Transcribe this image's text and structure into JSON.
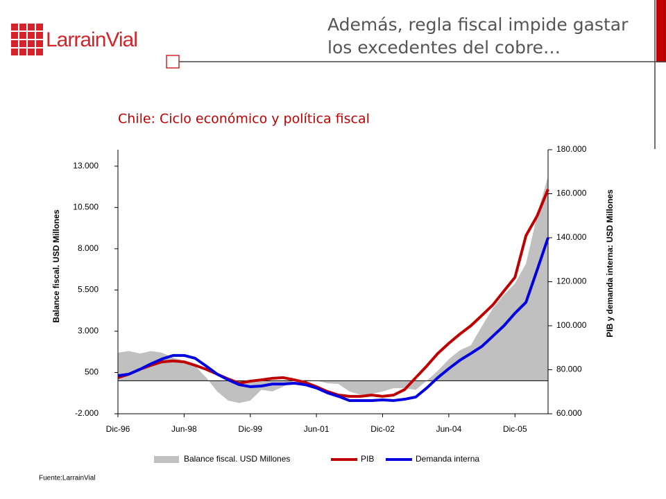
{
  "header": {
    "logo": "LarrainVial",
    "title_lines": [
      "Además, regla fiscal impide gastar",
      "los excedentes del cobre…"
    ]
  },
  "source": "Fuente:LarrainVial",
  "chart_data": {
    "type": "combo",
    "title": "Chile: Ciclo económico y política fiscal",
    "ylabel": "Balance fiscal. USD Millones",
    "y2label": "PIB y demanda interna: USD Millones",
    "categories": [
      "Dic-96",
      null,
      null,
      null,
      null,
      null,
      "Jun-98",
      null,
      null,
      null,
      null,
      null,
      "Dic-99",
      null,
      null,
      null,
      null,
      null,
      "Jun-01",
      null,
      null,
      null,
      null,
      null,
      "Dic-02",
      null,
      null,
      null,
      null,
      null,
      "Jun-04",
      null,
      null,
      null,
      null,
      null,
      "Dic-05",
      null,
      null,
      null
    ],
    "ylim": [
      -2000,
      14000
    ],
    "yticks": [
      {
        "value": -2000,
        "label": "-2.000"
      },
      500,
      {
        "value": 3000,
        "label": "3.000"
      },
      {
        "value": 5500,
        "label": "5.500"
      },
      {
        "value": 8000,
        "label": "8.000"
      },
      {
        "value": 10500,
        "label": "10.500"
      },
      {
        "value": 13000,
        "label": "13.000"
      }
    ],
    "y2lim": [
      60000,
      180000
    ],
    "y2ticks": [
      {
        "value": 60000,
        "label": "60.000"
      },
      {
        "value": 80000,
        "label": "80.000"
      },
      {
        "value": 100000,
        "label": "100.000"
      },
      {
        "value": 120000,
        "label": "120.000"
      },
      {
        "value": 140000,
        "label": "140.000"
      },
      {
        "value": 160000,
        "label": "160.000"
      },
      {
        "value": 180000,
        "label": "180.000"
      }
    ],
    "series": [
      {
        "name": "Balance fiscal. USD Millones",
        "kind": "area",
        "color": "#c0c0c0",
        "values": [
          1700,
          1800,
          1650,
          1800,
          1700,
          1400,
          1200,
          900,
          200,
          -650,
          -1200,
          -1350,
          -1200,
          -550,
          -650,
          -350,
          0,
          50,
          0,
          -150,
          -200,
          -650,
          -850,
          -800,
          -650,
          -450,
          -450,
          -550,
          0,
          600,
          1300,
          1850,
          2150,
          3300,
          4400,
          5200,
          5900,
          7100,
          10000,
          12400
        ]
      },
      {
        "name": "PIB",
        "kind": "line",
        "axis": "y2",
        "color": "#c00000",
        "values": [
          76400,
          78000,
          80200,
          82000,
          83600,
          84000,
          83600,
          82000,
          80200,
          78000,
          75800,
          73900,
          74800,
          75400,
          76100,
          76400,
          75400,
          74200,
          72300,
          70100,
          68500,
          67900,
          67900,
          68500,
          67900,
          68500,
          71000,
          76400,
          81700,
          87400,
          92000,
          96200,
          100000,
          104700,
          109500,
          115800,
          122000,
          141000,
          149800,
          162000
        ]
      },
      {
        "name": "Demanda interna",
        "kind": "line",
        "axis": "y2",
        "color": "#0000e0",
        "values": [
          77300,
          78000,
          80200,
          82700,
          84900,
          86500,
          86500,
          85200,
          81700,
          78000,
          75400,
          73200,
          72300,
          72600,
          73500,
          73500,
          73900,
          73200,
          71700,
          69500,
          67900,
          66000,
          66000,
          66000,
          66300,
          66000,
          66600,
          67600,
          71700,
          76400,
          80500,
          84300,
          87400,
          90600,
          95300,
          100000,
          105700,
          110700,
          125200,
          140000
        ]
      }
    ]
  }
}
